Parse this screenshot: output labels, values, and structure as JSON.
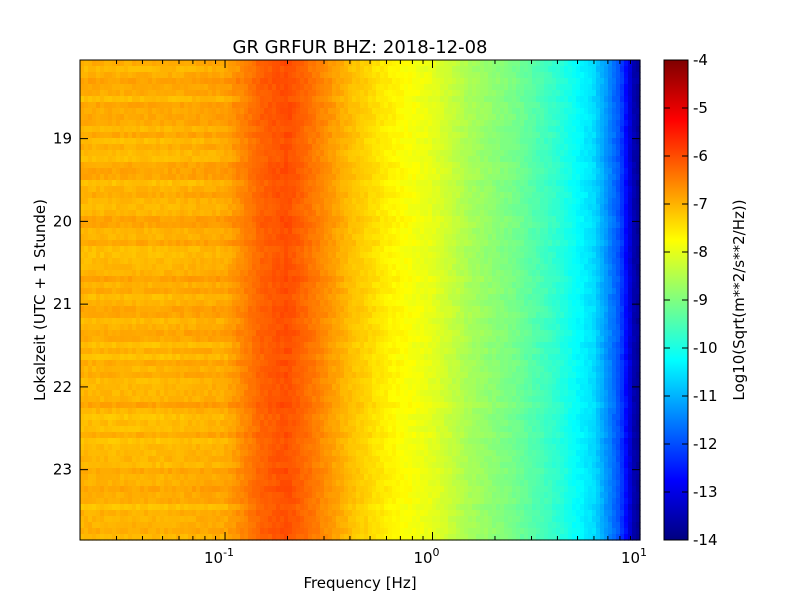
{
  "chart_data": {
    "type": "heatmap",
    "title": "GR GRFUR BHZ: 2018-12-08",
    "xlabel": "Frequency [Hz]",
    "ylabel": "Lokalzeit (UTC + 1 Stunde)",
    "xscale": "log",
    "xlim": [
      0.02,
      10
    ],
    "ylim": [
      18.05,
      23.85
    ],
    "y_inverted": true,
    "x_ticks": [
      {
        "base": "10",
        "exp": "-1",
        "value": 0.1
      },
      {
        "base": "10",
        "exp": "0",
        "value": 1
      },
      {
        "base": "10",
        "exp": "1",
        "value": 10
      }
    ],
    "y_ticks": [
      "19",
      "20",
      "21",
      "22",
      "23"
    ],
    "colorbar": {
      "label": "Log10(Sqrt(m**2/s**2/Hz))",
      "range": [
        -14,
        -4
      ],
      "colormap": "jet",
      "ticks": [
        "-4",
        "-5",
        "-6",
        "-7",
        "-8",
        "-9",
        "-10",
        "-11",
        "-12",
        "-13",
        "-14"
      ]
    },
    "spectrum_profile": {
      "frequency_hz": [
        0.02,
        0.05,
        0.1,
        0.12,
        0.15,
        0.2,
        0.28,
        0.4,
        0.6,
        1.0,
        1.5,
        2.5,
        4.0,
        6.0,
        8.0,
        9.3,
        10
      ],
      "log10_amplitude": [
        -7.0,
        -7.0,
        -6.9,
        -6.6,
        -6.2,
        -6.0,
        -6.5,
        -7.1,
        -7.6,
        -8.0,
        -8.6,
        -9.1,
        -9.8,
        -10.6,
        -12.0,
        -13.5,
        -13.8
      ]
    }
  }
}
